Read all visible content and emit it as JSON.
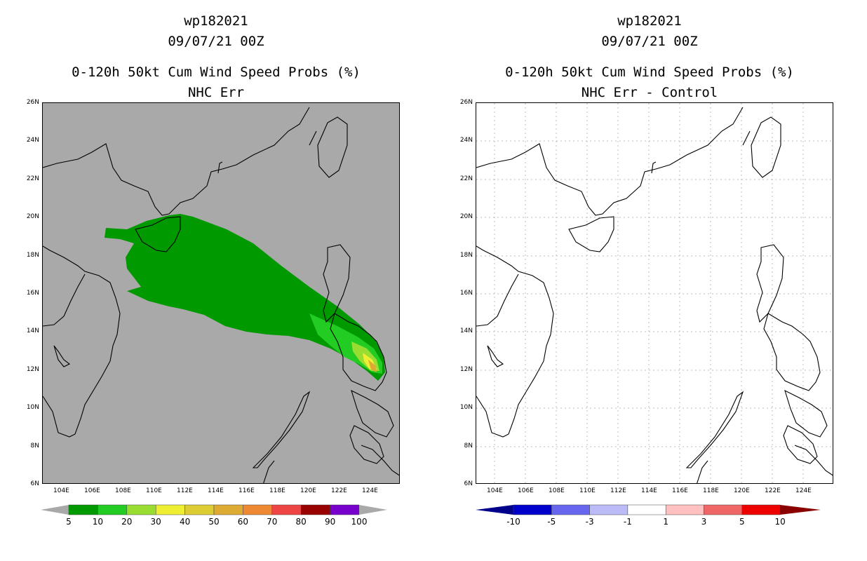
{
  "left_panel": {
    "title_line1": "wp182021",
    "title_line2": "09/07/21 00Z",
    "title_line3": "0-120h 50kt Cum Wind Speed Probs (%)",
    "title_line4": "NHC Err",
    "background_color": "#a9a9a9",
    "colorbar": {
      "labels": [
        "5",
        "10",
        "20",
        "30",
        "40",
        "50",
        "60",
        "70",
        "80",
        "90",
        "100"
      ],
      "colors": [
        "#009900",
        "#22cc22",
        "#99dd33",
        "#eeee33",
        "#ddcc33",
        "#ddaa33",
        "#ee8833",
        "#ee4444",
        "#990000",
        "#7700cc"
      ],
      "end_color": "#a9a9a9"
    }
  },
  "right_panel": {
    "title_line1": "wp182021",
    "title_line2": "09/07/21 00Z",
    "title_line3": "0-120h 50kt Cum Wind Speed Probs (%)",
    "title_line4": "NHC Err - Control",
    "background_color": "#ffffff",
    "colorbar": {
      "labels": [
        "-10",
        "-5",
        "-3",
        "-1",
        "1",
        "3",
        "5",
        "10"
      ],
      "colors": [
        "#0000cc",
        "#6666ee",
        "#bbbbf7",
        "#ffffff",
        "#ffc0c0",
        "#ee6666",
        "#ee0000"
      ],
      "end_left": "#00008b",
      "end_right": "#8b0000"
    }
  },
  "lat_labels": [
    "26N",
    "24N",
    "22N",
    "20N",
    "18N",
    "16N",
    "14N",
    "12N",
    "10N",
    "8N",
    "6N"
  ],
  "lon_labels": [
    "104E",
    "106E",
    "108E",
    "110E",
    "112E",
    "114E",
    "116E",
    "118E",
    "120E",
    "122E",
    "124E"
  ]
}
